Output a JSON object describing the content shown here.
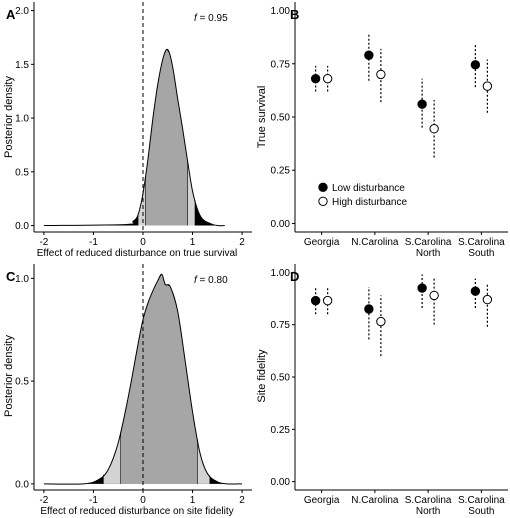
{
  "chart_data": [
    {
      "panel": "A",
      "type": "area",
      "annotation": "f = 0.95",
      "annotation_symbol": "f",
      "annotation_value": " = 0.95",
      "xlabel": "Effect of reduced disturbance on true survival",
      "ylabel": "Posterior density",
      "xlim": [
        -2.2,
        2.2
      ],
      "ylim": [
        -0.06,
        2.08
      ],
      "xticks": [
        "-2",
        "-1",
        "0",
        "1",
        "2"
      ],
      "yticks": [
        "0.0",
        "0.5",
        "1.0",
        "1.5",
        "2.0"
      ],
      "reference_line_x": 0,
      "series": [
        {
          "x": [
            -2.0,
            -0.35,
            -0.2,
            -0.1,
            0.0,
            0.1,
            0.2,
            0.3,
            0.4,
            0.48,
            0.55,
            0.62,
            0.7,
            0.8,
            0.9,
            1.0,
            1.1,
            1.2,
            1.35,
            1.5,
            1.65
          ],
          "y": [
            0.0,
            0.01,
            0.04,
            0.1,
            0.3,
            0.62,
            1.0,
            1.32,
            1.55,
            1.64,
            1.58,
            1.42,
            1.18,
            0.9,
            0.6,
            0.32,
            0.15,
            0.06,
            0.02,
            0.0,
            0.0
          ]
        }
      ],
      "credible_interval_95": [
        -0.1,
        1.05
      ],
      "credible_interval_inner": [
        0.05,
        0.9
      ]
    },
    {
      "panel": "B",
      "type": "scatter",
      "ylabel": "True survival",
      "ylim": [
        -0.04,
        1.04
      ],
      "yticks": [
        "0.00",
        "0.25",
        "0.50",
        "0.75",
        "1.00"
      ],
      "categories": [
        "Georgia",
        "N.Carolina",
        "S.Carolina\nNorth",
        "S.Carolina\nSouth"
      ],
      "series": [
        {
          "name": "Low disturbance",
          "values": [
            0.68,
            0.79,
            0.56,
            0.745
          ],
          "lower": [
            0.62,
            0.67,
            0.45,
            0.64
          ],
          "upper": [
            0.74,
            0.89,
            0.68,
            0.84
          ]
        },
        {
          "name": "High disturbance",
          "values": [
            0.68,
            0.7,
            0.445,
            0.645
          ],
          "lower": [
            0.62,
            0.57,
            0.31,
            0.52
          ],
          "upper": [
            0.74,
            0.82,
            0.58,
            0.77
          ]
        }
      ],
      "legend": "bottom-left"
    },
    {
      "panel": "C",
      "type": "area",
      "annotation": "f = 0.80",
      "annotation_symbol": "f",
      "annotation_value": " = 0.80",
      "xlabel": "Effect of reduced disturbance on site fidelity",
      "ylabel": "Posterior density",
      "xlim": [
        -2.2,
        2.2
      ],
      "ylim": [
        -0.03,
        1.07
      ],
      "xticks": [
        "-2",
        "-1",
        "0",
        "1",
        "2"
      ],
      "yticks": [
        "0.0",
        "0.5",
        "1.0"
      ],
      "reference_line_x": 0,
      "series": [
        {
          "x": [
            -2.0,
            -1.2,
            -0.9,
            -0.7,
            -0.5,
            -0.3,
            -0.1,
            0.0,
            0.1,
            0.2,
            0.3,
            0.38,
            0.45,
            0.55,
            0.7,
            0.85,
            1.0,
            1.15,
            1.3,
            1.5,
            1.7,
            2.0
          ],
          "y": [
            0.0,
            0.0,
            0.02,
            0.07,
            0.2,
            0.42,
            0.68,
            0.8,
            0.88,
            0.94,
            0.99,
            1.02,
            0.97,
            0.96,
            0.84,
            0.6,
            0.35,
            0.15,
            0.05,
            0.01,
            0.0,
            0.0
          ]
        }
      ],
      "credible_interval_95": [
        -0.8,
        1.35
      ],
      "credible_interval_inner": [
        -0.45,
        1.1
      ]
    },
    {
      "panel": "D",
      "type": "scatter",
      "ylabel": "Site fidelity",
      "ylim": [
        -0.04,
        1.04
      ],
      "yticks": [
        "0.00",
        "0.25",
        "0.50",
        "0.75",
        "1.00"
      ],
      "categories": [
        "Georgia",
        "N.Carolina",
        "S.Carolina\nNorth",
        "S.Carolina\nSouth"
      ],
      "series": [
        {
          "name": "Low disturbance",
          "values": [
            0.865,
            0.825,
            0.925,
            0.91
          ],
          "lower": [
            0.8,
            0.68,
            0.83,
            0.83
          ],
          "upper": [
            0.93,
            0.93,
            0.99,
            0.97
          ]
        },
        {
          "name": "High disturbance",
          "values": [
            0.865,
            0.765,
            0.89,
            0.87
          ],
          "lower": [
            0.8,
            0.6,
            0.75,
            0.74
          ],
          "upper": [
            0.93,
            0.89,
            0.97,
            0.95
          ]
        }
      ]
    }
  ]
}
